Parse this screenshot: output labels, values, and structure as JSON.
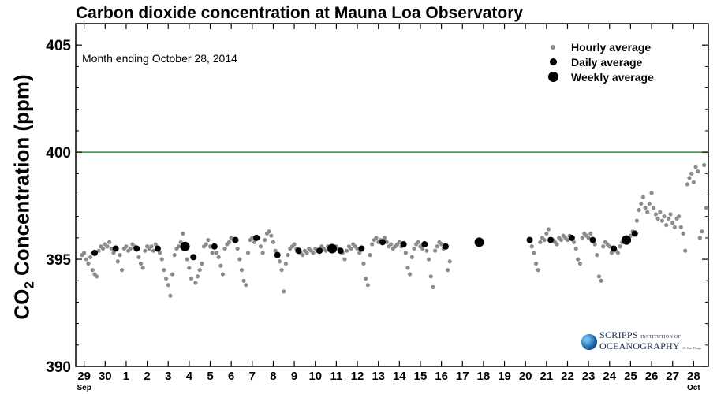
{
  "title": "Carbon dioxide concentration at Mauna Loa Observatory",
  "annotation": "Month ending October 28, 2014",
  "y_axis_label": {
    "main": "CO",
    "subscript": "2",
    "rest": " Concentration (ppm)"
  },
  "legend": {
    "items": [
      {
        "label": "Hourly average",
        "color": "#8c8c8c"
      },
      {
        "label": "Daily average",
        "color": "#000000"
      },
      {
        "label": "Weekly average",
        "color": "#000000"
      }
    ]
  },
  "logo": {
    "line1": "SCRIPPS",
    "line1_small": "INSTITUTION OF",
    "line2": "OCEANOGRAPHY",
    "affiliation": "UC San Diego"
  },
  "colors": {
    "hourly": "#8c8c8c",
    "daily": "#000000",
    "weekly": "#000000",
    "reference_line": "#2e8b3a",
    "axis": "#000000"
  },
  "chart_data": {
    "type": "scatter",
    "title": "Carbon dioxide concentration at Mauna Loa Observatory",
    "ylabel": "CO2 Concentration (ppm)",
    "xlabel": "",
    "ylim": [
      390,
      406
    ],
    "xlim": [
      28.6,
      58.7
    ],
    "y_ticks": [
      390,
      395,
      400,
      405
    ],
    "x_ticks": [
      {
        "x": 29,
        "label": "29",
        "month": "Sep"
      },
      {
        "x": 30,
        "label": "30"
      },
      {
        "x": 31,
        "label": "1"
      },
      {
        "x": 32,
        "label": "2"
      },
      {
        "x": 33,
        "label": "3"
      },
      {
        "x": 34,
        "label": "4"
      },
      {
        "x": 35,
        "label": "5"
      },
      {
        "x": 36,
        "label": "6"
      },
      {
        "x": 37,
        "label": "7"
      },
      {
        "x": 38,
        "label": "8"
      },
      {
        "x": 39,
        "label": "9"
      },
      {
        "x": 40,
        "label": "10"
      },
      {
        "x": 41,
        "label": "11"
      },
      {
        "x": 42,
        "label": "12"
      },
      {
        "x": 43,
        "label": "13"
      },
      {
        "x": 44,
        "label": "14"
      },
      {
        "x": 45,
        "label": "15"
      },
      {
        "x": 46,
        "label": "16"
      },
      {
        "x": 47,
        "label": "17"
      },
      {
        "x": 48,
        "label": "18"
      },
      {
        "x": 49,
        "label": "19"
      },
      {
        "x": 50,
        "label": "20"
      },
      {
        "x": 51,
        "label": "21"
      },
      {
        "x": 52,
        "label": "22"
      },
      {
        "x": 53,
        "label": "23"
      },
      {
        "x": 54,
        "label": "24"
      },
      {
        "x": 55,
        "label": "25"
      },
      {
        "x": 56,
        "label": "26"
      },
      {
        "x": 57,
        "label": "27"
      },
      {
        "x": 58,
        "label": "28",
        "month": "Oct"
      }
    ],
    "reference_line": {
      "y": 400
    },
    "series": [
      {
        "name": "Daily average",
        "points": [
          [
            29.5,
            395.3
          ],
          [
            30.5,
            395.5
          ],
          [
            31.5,
            395.5
          ],
          [
            32.5,
            395.5
          ],
          [
            34.2,
            395.1
          ],
          [
            35.2,
            395.6
          ],
          [
            36.2,
            395.9
          ],
          [
            37.2,
            396.0
          ],
          [
            38.2,
            395.2
          ],
          [
            39.2,
            395.4
          ],
          [
            40.2,
            395.4
          ],
          [
            41.2,
            395.4
          ],
          [
            42.2,
            395.5
          ],
          [
            43.2,
            395.8
          ],
          [
            44.2,
            395.7
          ],
          [
            45.2,
            395.7
          ],
          [
            46.2,
            395.6
          ],
          [
            50.2,
            395.9
          ],
          [
            51.2,
            395.9
          ],
          [
            52.2,
            396.0
          ],
          [
            53.2,
            395.9
          ],
          [
            54.2,
            395.5
          ],
          [
            55.2,
            396.2
          ]
        ]
      },
      {
        "name": "Weekly average",
        "points": [
          [
            33.8,
            395.6
          ],
          [
            40.8,
            395.5
          ],
          [
            47.8,
            395.8
          ],
          [
            54.8,
            395.9
          ]
        ]
      },
      {
        "name": "Hourly average",
        "points": [
          [
            28.9,
            395.2
          ],
          [
            29.0,
            395.3
          ],
          [
            29.1,
            395.0
          ],
          [
            29.2,
            394.8
          ],
          [
            29.3,
            395.1
          ],
          [
            29.4,
            394.5
          ],
          [
            29.5,
            394.3
          ],
          [
            29.6,
            394.2
          ],
          [
            29.7,
            395.4
          ],
          [
            29.8,
            395.6
          ],
          [
            29.9,
            395.5
          ],
          [
            30.0,
            395.7
          ],
          [
            30.1,
            395.6
          ],
          [
            30.2,
            395.8
          ],
          [
            30.3,
            395.5
          ],
          [
            30.4,
            395.3
          ],
          [
            30.6,
            394.9
          ],
          [
            30.7,
            395.2
          ],
          [
            30.8,
            394.5
          ],
          [
            30.9,
            395.5
          ],
          [
            31.0,
            395.6
          ],
          [
            31.1,
            395.4
          ],
          [
            31.2,
            395.5
          ],
          [
            31.3,
            395.7
          ],
          [
            31.4,
            395.6
          ],
          [
            31.6,
            395.1
          ],
          [
            31.7,
            394.8
          ],
          [
            31.8,
            394.6
          ],
          [
            31.9,
            395.4
          ],
          [
            32.0,
            395.6
          ],
          [
            32.1,
            395.5
          ],
          [
            32.2,
            395.6
          ],
          [
            32.3,
            395.4
          ],
          [
            32.4,
            395.7
          ],
          [
            32.6,
            395.3
          ],
          [
            32.7,
            395.0
          ],
          [
            32.8,
            394.5
          ],
          [
            32.9,
            394.1
          ],
          [
            33.0,
            393.8
          ],
          [
            33.1,
            393.3
          ],
          [
            33.2,
            394.3
          ],
          [
            33.3,
            395.2
          ],
          [
            33.4,
            395.5
          ],
          [
            33.5,
            395.6
          ],
          [
            33.6,
            395.8
          ],
          [
            33.7,
            396.2
          ],
          [
            33.9,
            395.0
          ],
          [
            34.0,
            394.6
          ],
          [
            34.1,
            394.1
          ],
          [
            34.3,
            393.9
          ],
          [
            34.4,
            394.2
          ],
          [
            34.5,
            394.5
          ],
          [
            34.6,
            394.8
          ],
          [
            34.7,
            395.6
          ],
          [
            34.8,
            395.7
          ],
          [
            34.9,
            395.9
          ],
          [
            35.0,
            395.6
          ],
          [
            35.1,
            395.3
          ],
          [
            35.3,
            395.3
          ],
          [
            35.4,
            395.1
          ],
          [
            35.5,
            394.7
          ],
          [
            35.6,
            394.3
          ],
          [
            35.7,
            395.5
          ],
          [
            35.8,
            395.7
          ],
          [
            35.9,
            395.8
          ],
          [
            36.0,
            396.0
          ],
          [
            36.1,
            395.9
          ],
          [
            36.3,
            395.5
          ],
          [
            36.4,
            395.0
          ],
          [
            36.5,
            394.5
          ],
          [
            36.6,
            394.0
          ],
          [
            36.7,
            393.8
          ],
          [
            36.8,
            395.3
          ],
          [
            36.9,
            395.9
          ],
          [
            37.0,
            396.0
          ],
          [
            37.1,
            395.8
          ],
          [
            37.3,
            396.0
          ],
          [
            37.4,
            395.6
          ],
          [
            37.5,
            395.3
          ],
          [
            37.6,
            395.9
          ],
          [
            37.7,
            396.2
          ],
          [
            37.8,
            396.3
          ],
          [
            37.9,
            396.1
          ],
          [
            38.0,
            395.8
          ],
          [
            38.1,
            395.4
          ],
          [
            38.3,
            394.9
          ],
          [
            38.4,
            394.5
          ],
          [
            38.5,
            393.5
          ],
          [
            38.6,
            394.8
          ],
          [
            38.7,
            395.2
          ],
          [
            38.8,
            395.5
          ],
          [
            38.9,
            395.6
          ],
          [
            39.0,
            395.7
          ],
          [
            39.1,
            395.5
          ],
          [
            39.3,
            395.3
          ],
          [
            39.4,
            395.2
          ],
          [
            39.5,
            395.4
          ],
          [
            39.6,
            395.3
          ],
          [
            39.7,
            395.5
          ],
          [
            39.8,
            395.4
          ],
          [
            39.9,
            395.3
          ],
          [
            40.0,
            395.5
          ],
          [
            40.1,
            395.4
          ],
          [
            40.3,
            395.6
          ],
          [
            40.4,
            395.5
          ],
          [
            40.5,
            395.4
          ],
          [
            40.6,
            395.6
          ],
          [
            40.7,
            395.5
          ],
          [
            40.9,
            395.4
          ],
          [
            41.0,
            395.6
          ],
          [
            41.1,
            395.5
          ],
          [
            41.3,
            395.3
          ],
          [
            41.4,
            395.0
          ],
          [
            41.5,
            395.4
          ],
          [
            41.6,
            395.6
          ],
          [
            41.7,
            395.5
          ],
          [
            41.8,
            395.7
          ],
          [
            41.9,
            395.6
          ],
          [
            42.0,
            395.5
          ],
          [
            42.1,
            395.3
          ],
          [
            42.3,
            394.8
          ],
          [
            42.4,
            394.1
          ],
          [
            42.5,
            393.8
          ],
          [
            42.6,
            395.2
          ],
          [
            42.7,
            395.7
          ],
          [
            42.8,
            395.9
          ],
          [
            42.9,
            396.0
          ],
          [
            43.0,
            395.8
          ],
          [
            43.1,
            395.9
          ],
          [
            43.3,
            396.0
          ],
          [
            43.4,
            395.8
          ],
          [
            43.5,
            395.6
          ],
          [
            43.6,
            395.7
          ],
          [
            43.7,
            395.5
          ],
          [
            43.8,
            395.6
          ],
          [
            43.9,
            395.7
          ],
          [
            44.0,
            395.8
          ],
          [
            44.1,
            395.6
          ],
          [
            44.3,
            395.3
          ],
          [
            44.4,
            394.6
          ],
          [
            44.5,
            394.3
          ],
          [
            44.6,
            395.1
          ],
          [
            44.7,
            395.5
          ],
          [
            44.8,
            395.7
          ],
          [
            44.9,
            395.8
          ],
          [
            45.0,
            395.6
          ],
          [
            45.1,
            395.5
          ],
          [
            45.3,
            395.4
          ],
          [
            45.4,
            395.0
          ],
          [
            45.5,
            394.2
          ],
          [
            45.6,
            393.7
          ],
          [
            45.7,
            395.4
          ],
          [
            45.8,
            395.6
          ],
          [
            45.9,
            395.8
          ],
          [
            46.0,
            395.7
          ],
          [
            46.1,
            395.5
          ],
          [
            46.3,
            394.5
          ],
          [
            46.4,
            394.9
          ],
          [
            50.3,
            395.6
          ],
          [
            50.4,
            395.3
          ],
          [
            50.5,
            394.8
          ],
          [
            50.6,
            394.5
          ],
          [
            50.7,
            395.8
          ],
          [
            50.8,
            396.0
          ],
          [
            50.9,
            395.9
          ],
          [
            51.0,
            396.2
          ],
          [
            51.1,
            396.4
          ],
          [
            51.3,
            395.9
          ],
          [
            51.4,
            395.8
          ],
          [
            51.5,
            395.7
          ],
          [
            51.6,
            396.0
          ],
          [
            51.7,
            395.9
          ],
          [
            51.8,
            396.1
          ],
          [
            51.9,
            396.0
          ],
          [
            52.0,
            395.9
          ],
          [
            52.1,
            396.1
          ],
          [
            52.3,
            395.8
          ],
          [
            52.4,
            395.5
          ],
          [
            52.5,
            395.0
          ],
          [
            52.6,
            394.8
          ],
          [
            52.7,
            396.0
          ],
          [
            52.8,
            396.2
          ],
          [
            52.9,
            396.1
          ],
          [
            53.0,
            396.0
          ],
          [
            53.1,
            396.2
          ],
          [
            53.3,
            395.7
          ],
          [
            53.4,
            395.2
          ],
          [
            53.5,
            394.2
          ],
          [
            53.6,
            394.0
          ],
          [
            53.7,
            395.6
          ],
          [
            53.8,
            395.8
          ],
          [
            53.9,
            395.7
          ],
          [
            54.0,
            395.6
          ],
          [
            54.1,
            395.3
          ],
          [
            54.3,
            395.4
          ],
          [
            54.4,
            395.3
          ],
          [
            54.5,
            395.6
          ],
          [
            54.6,
            395.8
          ],
          [
            54.7,
            395.9
          ],
          [
            54.9,
            396.0
          ],
          [
            55.0,
            396.1
          ],
          [
            55.1,
            396.3
          ],
          [
            55.3,
            396.8
          ],
          [
            55.4,
            397.3
          ],
          [
            55.5,
            397.6
          ],
          [
            55.6,
            397.9
          ],
          [
            55.7,
            397.4
          ],
          [
            55.8,
            397.2
          ],
          [
            55.9,
            397.6
          ],
          [
            56.0,
            398.1
          ],
          [
            56.1,
            397.4
          ],
          [
            56.2,
            397.1
          ],
          [
            56.3,
            396.9
          ],
          [
            56.4,
            397.2
          ],
          [
            56.5,
            396.8
          ],
          [
            56.6,
            397.0
          ],
          [
            56.7,
            396.6
          ],
          [
            56.8,
            396.9
          ],
          [
            56.9,
            397.1
          ],
          [
            57.0,
            396.7
          ],
          [
            57.1,
            396.5
          ],
          [
            57.2,
            396.9
          ],
          [
            57.3,
            397.0
          ],
          [
            57.4,
            396.5
          ],
          [
            57.5,
            396.2
          ],
          [
            57.6,
            395.4
          ],
          [
            57.7,
            398.5
          ],
          [
            57.8,
            398.8
          ],
          [
            57.9,
            399.0
          ],
          [
            58.0,
            398.6
          ],
          [
            58.1,
            399.3
          ],
          [
            58.2,
            399.1
          ],
          [
            58.3,
            396.0
          ],
          [
            58.4,
            396.3
          ],
          [
            58.5,
            399.4
          ],
          [
            58.6,
            397.4
          ]
        ]
      }
    ]
  }
}
